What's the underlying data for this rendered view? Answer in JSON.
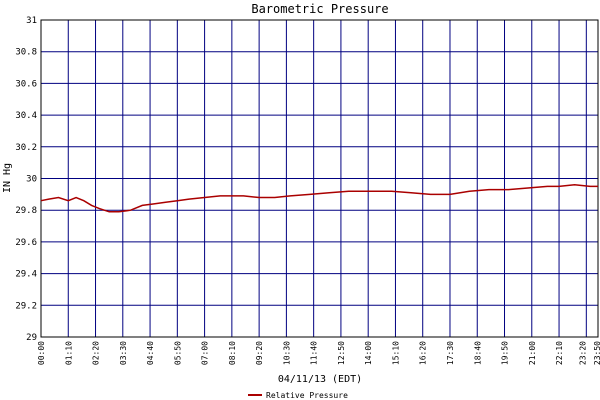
{
  "chart_data": {
    "type": "line",
    "title": "Barometric Pressure",
    "xlabel": "04/11/13 (EDT)",
    "ylabel": "IN Hg",
    "ylim": [
      29,
      31
    ],
    "yticks": [
      "29",
      "29.2",
      "29.4",
      "29.6",
      "29.8",
      "30",
      "30.2",
      "30.4",
      "30.6",
      "30.8",
      "31"
    ],
    "xtick_labels": [
      "00:00",
      "01:10",
      "02:20",
      "03:30",
      "04:40",
      "05:50",
      "07:00",
      "08:10",
      "09:20",
      "10:30",
      "11:40",
      "12:50",
      "14:00",
      "15:10",
      "16:20",
      "17:30",
      "18:40",
      "19:50",
      "21:00",
      "22:10",
      "23:20",
      "23:50"
    ],
    "grid": true,
    "legend_position": "bottom-center",
    "colors": {
      "series": "#aa0000",
      "grid": "#000080",
      "frame": "#000000"
    },
    "series": [
      {
        "name": "Relative Pressure",
        "x_minutes": [
          0,
          20,
          45,
          70,
          90,
          110,
          130,
          150,
          175,
          200,
          230,
          260,
          290,
          320,
          350,
          380,
          420,
          460,
          490,
          520,
          560,
          600,
          640,
          690,
          740,
          790,
          840,
          900,
          950,
          1000,
          1050,
          1100,
          1150,
          1200,
          1250,
          1300,
          1330,
          1370,
          1410,
          1430
        ],
        "values": [
          29.86,
          29.87,
          29.88,
          29.86,
          29.88,
          29.86,
          29.83,
          29.81,
          29.79,
          29.79,
          29.8,
          29.83,
          29.84,
          29.85,
          29.86,
          29.87,
          29.88,
          29.89,
          29.89,
          29.89,
          29.88,
          29.88,
          29.89,
          29.9,
          29.91,
          29.92,
          29.92,
          29.92,
          29.91,
          29.9,
          29.9,
          29.92,
          29.93,
          29.93,
          29.94,
          29.95,
          29.95,
          29.96,
          29.95,
          29.95
        ]
      }
    ]
  }
}
